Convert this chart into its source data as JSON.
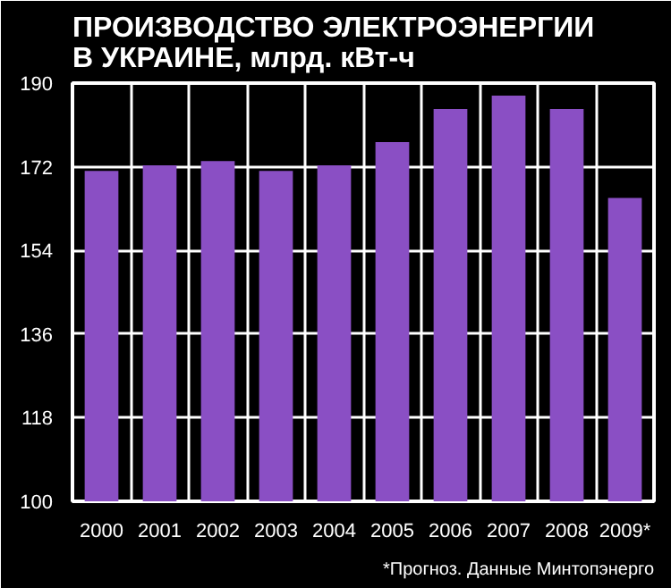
{
  "chart_data": {
    "type": "bar",
    "title": "ПРОИЗВОДСТВО ЭЛЕКТРОЭНЕРГИИ\nВ УКРАИНЕ, млрд. кВт-ч",
    "categories": [
      "2000",
      "2001",
      "2002",
      "2003",
      "2004",
      "2005",
      "2006",
      "2007",
      "2008",
      "2009*"
    ],
    "values": [
      171.1,
      172.3,
      173.2,
      171.1,
      172.3,
      177.3,
      184.4,
      187.3,
      184.4,
      165.3
    ],
    "color": "#8a4fc4",
    "ylim": [
      100,
      190
    ],
    "yticks": [
      100,
      118,
      136,
      154,
      172,
      190
    ],
    "grid": true,
    "annotations": [
      "*Прогноз. Данные Минтопэнерго"
    ]
  }
}
